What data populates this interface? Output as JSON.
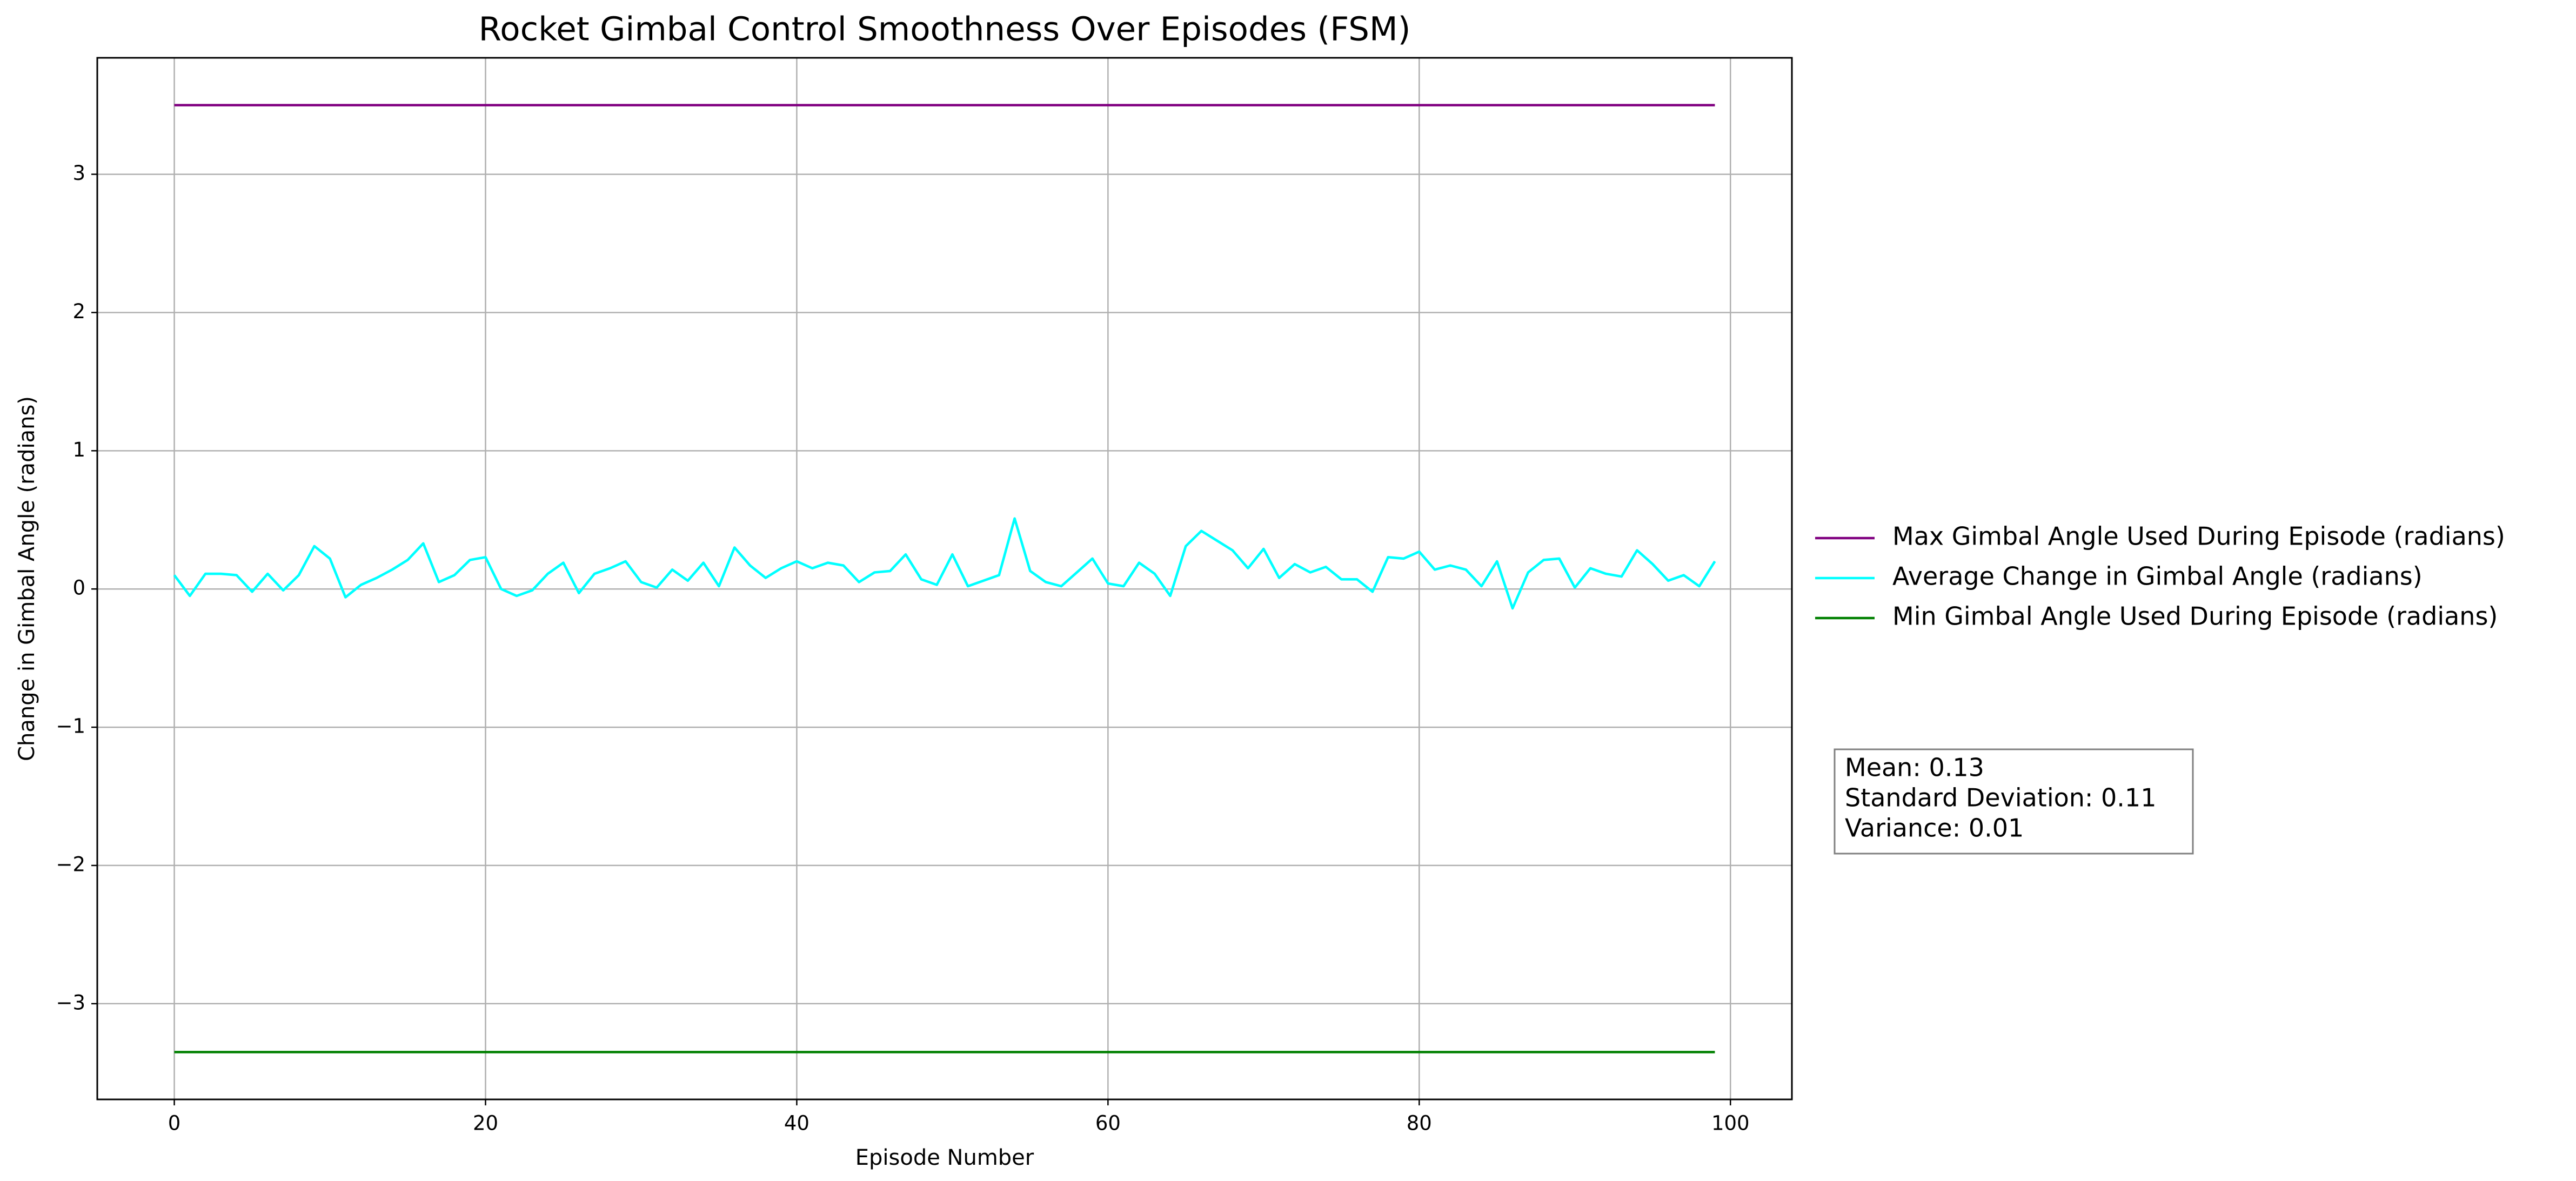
{
  "chart_data": {
    "type": "line",
    "title": "Rocket Gimbal Control Smoothness Over Episodes (FSM)",
    "x_label": "Episode Number",
    "y_label": "Change in Gimbal Angle (radians)",
    "x": [
      0,
      1,
      2,
      3,
      4,
      5,
      6,
      7,
      8,
      9,
      10,
      11,
      12,
      13,
      14,
      15,
      16,
      17,
      18,
      19,
      20,
      21,
      22,
      23,
      24,
      25,
      26,
      27,
      28,
      29,
      30,
      31,
      32,
      33,
      34,
      35,
      36,
      37,
      38,
      39,
      40,
      41,
      42,
      43,
      44,
      45,
      46,
      47,
      48,
      49,
      50,
      51,
      52,
      53,
      54,
      55,
      56,
      57,
      58,
      59,
      60,
      61,
      62,
      63,
      64,
      65,
      66,
      67,
      68,
      69,
      70,
      71,
      72,
      73,
      74,
      75,
      76,
      77,
      78,
      79,
      80,
      81,
      82,
      83,
      84,
      85,
      86,
      87,
      88,
      89,
      90,
      91,
      92,
      93,
      94,
      95,
      96,
      97,
      98,
      99
    ],
    "series": [
      {
        "name": "Max Gimbal Angle Used During Episode (radians)",
        "color": "#800080",
        "values": [
          3.5,
          3.5,
          3.5,
          3.5,
          3.5,
          3.5,
          3.5,
          3.5,
          3.5,
          3.5,
          3.5,
          3.5,
          3.5,
          3.5,
          3.5,
          3.5,
          3.5,
          3.5,
          3.5,
          3.5,
          3.5,
          3.5,
          3.5,
          3.5,
          3.5,
          3.5,
          3.5,
          3.5,
          3.5,
          3.5,
          3.5,
          3.5,
          3.5,
          3.5,
          3.5,
          3.5,
          3.5,
          3.5,
          3.5,
          3.5,
          3.5,
          3.5,
          3.5,
          3.5,
          3.5,
          3.5,
          3.5,
          3.5,
          3.5,
          3.5,
          3.5,
          3.5,
          3.5,
          3.5,
          3.5,
          3.5,
          3.5,
          3.5,
          3.5,
          3.5,
          3.5,
          3.5,
          3.5,
          3.5,
          3.5,
          3.5,
          3.5,
          3.5,
          3.5,
          3.5,
          3.5,
          3.5,
          3.5,
          3.5,
          3.5,
          3.5,
          3.5,
          3.5,
          3.5,
          3.5,
          3.5,
          3.5,
          3.5,
          3.5,
          3.5,
          3.5,
          3.5,
          3.5,
          3.5,
          3.5,
          3.5,
          3.5,
          3.5,
          3.5,
          3.5,
          3.5,
          3.5,
          3.5,
          3.5,
          3.5
        ]
      },
      {
        "name": "Average Change in Gimbal Angle (radians)",
        "color": "#00ffff",
        "values": [
          0.1,
          -0.05,
          0.11,
          0.11,
          0.1,
          -0.02,
          0.11,
          -0.01,
          0.1,
          0.31,
          0.22,
          -0.06,
          0.03,
          0.08,
          0.14,
          0.21,
          0.33,
          0.05,
          0.1,
          0.21,
          0.23,
          0.0,
          -0.05,
          -0.01,
          0.11,
          0.19,
          -0.03,
          0.11,
          0.15,
          0.2,
          0.05,
          0.01,
          0.14,
          0.06,
          0.19,
          0.02,
          0.3,
          0.17,
          0.08,
          0.15,
          0.2,
          0.15,
          0.19,
          0.17,
          0.05,
          0.12,
          0.13,
          0.25,
          0.07,
          0.03,
          0.25,
          0.02,
          0.06,
          0.1,
          0.51,
          0.13,
          0.05,
          0.02,
          0.12,
          0.22,
          0.04,
          0.02,
          0.19,
          0.11,
          -0.05,
          0.31,
          0.42,
          0.35,
          0.28,
          0.15,
          0.29,
          0.08,
          0.18,
          0.12,
          0.16,
          0.07,
          0.07,
          -0.02,
          0.23,
          0.22,
          0.27,
          0.14,
          0.17,
          0.14,
          0.02,
          0.2,
          -0.14,
          0.12,
          0.21,
          0.22,
          0.01,
          0.15,
          0.11,
          0.09,
          0.28,
          0.18,
          0.06,
          0.1,
          0.02,
          0.2
        ]
      },
      {
        "name": "Min Gimbal Angle Used During Episode (radians)",
        "color": "#008000",
        "values": [
          -3.35,
          -3.35,
          -3.35,
          -3.35,
          -3.35,
          -3.35,
          -3.35,
          -3.35,
          -3.35,
          -3.35,
          -3.35,
          -3.35,
          -3.35,
          -3.35,
          -3.35,
          -3.35,
          -3.35,
          -3.35,
          -3.35,
          -3.35,
          -3.35,
          -3.35,
          -3.35,
          -3.35,
          -3.35,
          -3.35,
          -3.35,
          -3.35,
          -3.35,
          -3.35,
          -3.35,
          -3.35,
          -3.35,
          -3.35,
          -3.35,
          -3.35,
          -3.35,
          -3.35,
          -3.35,
          -3.35,
          -3.35,
          -3.35,
          -3.35,
          -3.35,
          -3.35,
          -3.35,
          -3.35,
          -3.35,
          -3.35,
          -3.35,
          -3.35,
          -3.35,
          -3.35,
          -3.35,
          -3.35,
          -3.35,
          -3.35,
          -3.35,
          -3.35,
          -3.35,
          -3.35,
          -3.35,
          -3.35,
          -3.35,
          -3.35,
          -3.35,
          -3.35,
          -3.35,
          -3.35,
          -3.35,
          -3.35,
          -3.35,
          -3.35,
          -3.35,
          -3.35,
          -3.35,
          -3.35,
          -3.35,
          -3.35,
          -3.35,
          -3.35,
          -3.35,
          -3.35,
          -3.35,
          -3.35,
          -3.35,
          -3.35,
          -3.35,
          -3.35,
          -3.35,
          -3.35,
          -3.35,
          -3.35,
          -3.35,
          -3.35,
          -3.35,
          -3.35,
          -3.35,
          -3.35,
          -3.35
        ]
      }
    ],
    "xlim": [
      -4.95,
      103.95
    ],
    "xticks": [
      0,
      20,
      40,
      60,
      80,
      100
    ],
    "ylim": [
      -3.6925,
      3.8425
    ],
    "yticks": [
      {
        "value": -3,
        "label": "−3"
      },
      {
        "value": -2,
        "label": "−2"
      },
      {
        "value": -1,
        "label": "−1"
      },
      0,
      1,
      2,
      3
    ],
    "grid": true,
    "legend": "outside right",
    "annotation": [
      "Mean: 0.13",
      "Standard Deviation: 0.11",
      "Variance: 0.01"
    ]
  }
}
